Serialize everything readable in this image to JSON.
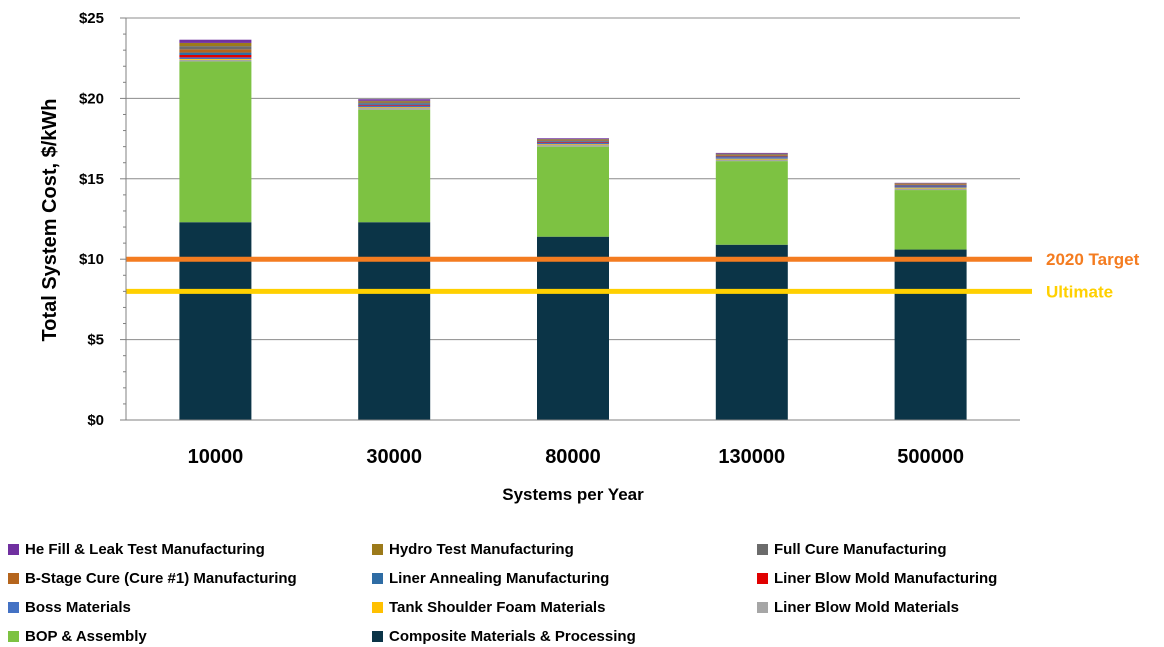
{
  "chart_data": {
    "type": "bar",
    "stacked": true,
    "title": "",
    "xlabel": "Systems per Year",
    "ylabel": "Total System Cost, $/kWh",
    "ylim": [
      0,
      25
    ],
    "y_ticks": [
      "$0",
      "$5",
      "$10",
      "$15",
      "$20",
      "$25"
    ],
    "grid": true,
    "legend_position": "bottom",
    "categories": [
      "10000",
      "30000",
      "80000",
      "130000",
      "500000"
    ],
    "series": [
      {
        "name": "Composite Materials & Processing",
        "color": "#0b3447",
        "values": [
          12.3,
          12.3,
          11.4,
          10.9,
          10.6
        ]
      },
      {
        "name": "BOP & Assembly",
        "color": "#7dc242",
        "values": [
          10.0,
          7.0,
          5.6,
          5.2,
          3.7
        ]
      },
      {
        "name": "Liner Blow Mold Materials",
        "color": "#a6a6a6",
        "values": [
          0.1,
          0.1,
          0.1,
          0.1,
          0.1
        ]
      },
      {
        "name": "Tank Shoulder Foam Materials",
        "color": "#ffc000",
        "values": [
          0.05,
          0.05,
          0.05,
          0.05,
          0.05
        ]
      },
      {
        "name": "Boss Materials",
        "color": "#4472c4",
        "values": [
          0.1,
          0.1,
          0.1,
          0.1,
          0.1
        ]
      },
      {
        "name": "Liner Blow Mold Manufacturing",
        "color": "#e00000",
        "values": [
          0.15,
          0.05,
          0.04,
          0.03,
          0.02
        ]
      },
      {
        "name": "Liner Annealing Manufacturing",
        "color": "#2e6ca4",
        "values": [
          0.15,
          0.1,
          0.05,
          0.05,
          0.05
        ]
      },
      {
        "name": "B-Stage Cure (Cure #1) Manufacturing",
        "color": "#b5651d",
        "values": [
          0.2,
          0.05,
          0.05,
          0.05,
          0.05
        ]
      },
      {
        "name": "Full Cure Manufacturing",
        "color": "#6b6b6b",
        "values": [
          0.2,
          0.05,
          0.05,
          0.05,
          0.03
        ]
      },
      {
        "name": "Hydro Test Manufacturing",
        "color": "#9c7a1a",
        "values": [
          0.2,
          0.05,
          0.03,
          0.03,
          0.02
        ]
      },
      {
        "name": "He Fill & Leak Test Manufacturing",
        "color": "#7030a0",
        "values": [
          0.2,
          0.1,
          0.05,
          0.05,
          0.03
        ]
      }
    ],
    "reference_lines": [
      {
        "label": "2020 Target",
        "value": 10,
        "color": "#f47c20"
      },
      {
        "label": "Ultimate",
        "value": 8,
        "color": "#ffd000"
      }
    ]
  },
  "legend_order": [
    "He Fill & Leak Test Manufacturing",
    "Hydro Test Manufacturing",
    "Full Cure Manufacturing",
    "B-Stage Cure (Cure #1) Manufacturing",
    "Liner Annealing Manufacturing",
    "Liner Blow Mold Manufacturing",
    "Boss Materials",
    "Tank Shoulder Foam Materials",
    "Liner Blow Mold Materials",
    "BOP & Assembly",
    "Composite Materials & Processing"
  ]
}
